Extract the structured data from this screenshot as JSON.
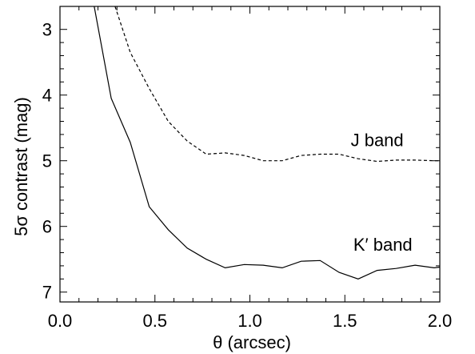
{
  "chart_data": {
    "type": "line",
    "xlabel": "θ (arcsec)",
    "ylabel": "5σ contrast (mag)",
    "xlim": [
      0.0,
      2.0
    ],
    "ylim": [
      7.15,
      2.65
    ],
    "y_inverted": true,
    "x_ticks": [
      "0.0",
      "0.5",
      "1.0",
      "1.5",
      "2.0"
    ],
    "x_tick_values": [
      0.0,
      0.5,
      1.0,
      1.5,
      2.0
    ],
    "y_ticks": [
      "3",
      "4",
      "5",
      "6",
      "7"
    ],
    "y_tick_values": [
      3,
      4,
      5,
      6,
      7
    ],
    "series": [
      {
        "style": "dashed",
        "x": [
          0.29,
          0.37,
          0.47,
          0.57,
          0.67,
          0.77,
          0.87,
          0.97,
          1.07,
          1.17,
          1.27,
          1.37,
          1.47,
          1.57,
          1.67,
          1.77,
          1.87,
          1.97,
          2.0
        ],
        "y": [
          2.65,
          3.35,
          3.9,
          4.4,
          4.7,
          4.9,
          4.88,
          4.92,
          5.0,
          5.0,
          4.92,
          4.9,
          4.9,
          4.97,
          5.01,
          4.99,
          4.99,
          5.0,
          5.0
        ]
      },
      {
        "style": "solid",
        "x": [
          0.18,
          0.27,
          0.37,
          0.47,
          0.57,
          0.67,
          0.77,
          0.87,
          0.97,
          1.07,
          1.17,
          1.27,
          1.37,
          1.47,
          1.57,
          1.67,
          1.77,
          1.87,
          1.97,
          2.0
        ],
        "y": [
          2.65,
          4.05,
          4.72,
          5.7,
          6.05,
          6.33,
          6.5,
          6.63,
          6.58,
          6.59,
          6.63,
          6.53,
          6.52,
          6.7,
          6.8,
          6.67,
          6.64,
          6.59,
          6.63,
          6.62
        ]
      }
    ],
    "annotations": [
      {
        "text": "J band",
        "x": 1.67,
        "y": 4.78
      },
      {
        "text": "K′ band",
        "x": 1.7,
        "y": 6.37
      }
    ],
    "grid": false
  }
}
